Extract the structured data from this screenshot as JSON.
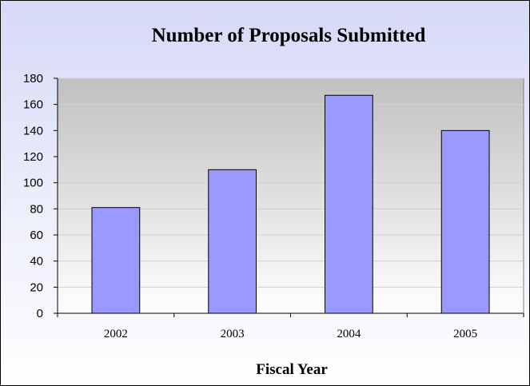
{
  "chart_data": {
    "type": "bar",
    "title": "Number of Proposals Submitted",
    "xlabel": "Fiscal Year",
    "ylabel": "",
    "categories": [
      "2002",
      "2003",
      "2004",
      "2005"
    ],
    "values": [
      81,
      110,
      167,
      140
    ],
    "ylim": [
      0,
      180
    ],
    "yticks": [
      "0",
      "20",
      "40",
      "60",
      "80",
      "100",
      "120",
      "140",
      "160",
      "180"
    ],
    "grid": true,
    "legend": "none",
    "colors": {
      "bar": "#9999ff",
      "bar_border": "#000000",
      "plot_bg_top": "#c0c0c0",
      "plot_bg_bottom": "#ffffff",
      "frame_bg": "#d6d9f7"
    }
  }
}
